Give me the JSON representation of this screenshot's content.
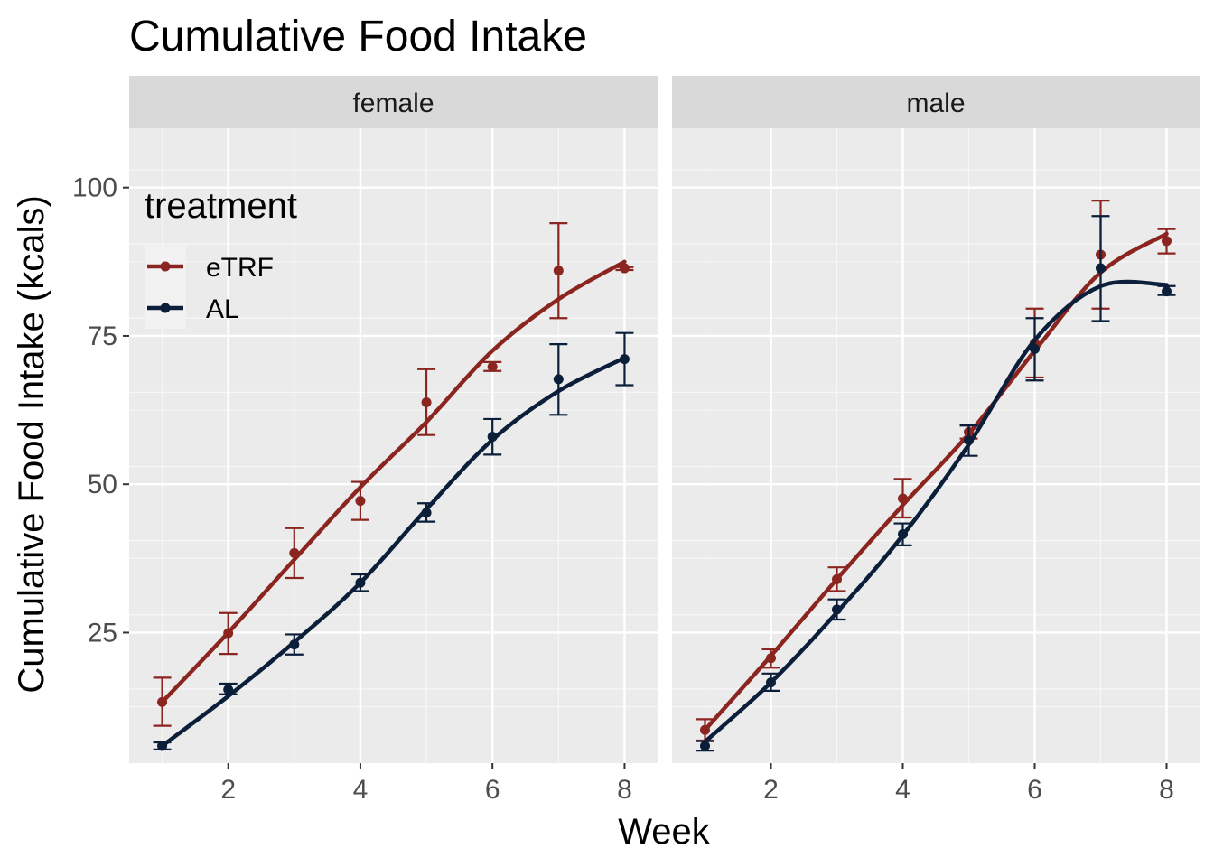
{
  "chart_data": {
    "type": "line",
    "title": "Cumulative Food Intake",
    "xlabel": "Week",
    "ylabel": "Cumulative Food Intake (kcals)",
    "x_ticks": [
      2,
      4,
      6,
      8
    ],
    "y_ticks": [
      25,
      50,
      75,
      100
    ],
    "xlim": [
      0.5,
      8.5
    ],
    "ylim": [
      3,
      110
    ],
    "grid": true,
    "legend": {
      "title": "treatment",
      "placement": "top-left inside female panel",
      "entries": [
        {
          "name": "eTRF",
          "color": "#8b2520"
        },
        {
          "name": "AL",
          "color": "#0b1f3a"
        }
      ]
    },
    "panels": [
      {
        "label": "female",
        "series": [
          {
            "name": "eTRF",
            "x": [
              1,
              2,
              3,
              4,
              5,
              6,
              7,
              8
            ],
            "mean": [
              13.3,
              24.9,
              38.4,
              47.2,
              63.8,
              69.8,
              86.0,
              86.4
            ],
            "err_low": [
              9.3,
              21.4,
              34.2,
              44.0,
              58.3,
              69.1,
              78.0,
              86.1
            ],
            "err_high": [
              17.4,
              28.3,
              42.6,
              50.4,
              69.4,
              70.6,
              94.0,
              86.6
            ],
            "smooth": [
              13.3,
              25.0,
              37.3,
              49.5,
              60.5,
              72.5,
              81.2,
              87.5
            ]
          },
          {
            "name": "AL",
            "x": [
              1,
              2,
              3,
              4,
              5,
              6,
              7,
              8
            ],
            "mean": [
              5.9,
              15.4,
              23.0,
              33.4,
              45.2,
              58.0,
              67.7,
              71.1
            ],
            "err_low": [
              5.3,
              14.6,
              21.3,
              32.0,
              43.7,
              55.0,
              61.7,
              66.7
            ],
            "err_high": [
              6.5,
              16.4,
              24.7,
              34.8,
              46.8,
              61.0,
              73.6,
              75.5
            ],
            "smooth": [
              5.9,
              14.3,
              23.4,
              33.4,
              45.8,
              57.5,
              65.7,
              71.3
            ]
          }
        ]
      },
      {
        "label": "male",
        "series": [
          {
            "name": "eTRF",
            "x": [
              1,
              2,
              3,
              4,
              5,
              6,
              7,
              8
            ],
            "mean": [
              8.6,
              20.7,
              34.0,
              47.6,
              58.8,
              73.8,
              88.7,
              91.0
            ],
            "err_low": [
              6.8,
              19.1,
              32.0,
              44.4,
              57.7,
              68.0,
              79.6,
              88.9
            ],
            "err_high": [
              10.4,
              22.2,
              36.0,
              50.9,
              59.9,
              79.6,
              97.8,
              93.0
            ],
            "smooth": [
              8.6,
              21.1,
              34.0,
              46.5,
              58.5,
              72.5,
              85.7,
              92.2
            ]
          },
          {
            "name": "AL",
            "x": [
              1,
              2,
              3,
              4,
              5,
              6,
              7,
              8
            ],
            "mean": [
              5.9,
              16.6,
              28.9,
              41.6,
              57.4,
              72.8,
              86.4,
              82.5
            ],
            "err_low": [
              5.1,
              15.2,
              27.2,
              39.7,
              54.8,
              67.5,
              77.5,
              81.9
            ],
            "err_high": [
              6.7,
              18.1,
              30.6,
              43.4,
              59.9,
              78.0,
              95.2,
              83.4
            ],
            "smooth": [
              6.6,
              16.6,
              28.4,
              41.4,
              56.7,
              74.3,
              83.4,
              83.6
            ]
          }
        ]
      }
    ]
  }
}
